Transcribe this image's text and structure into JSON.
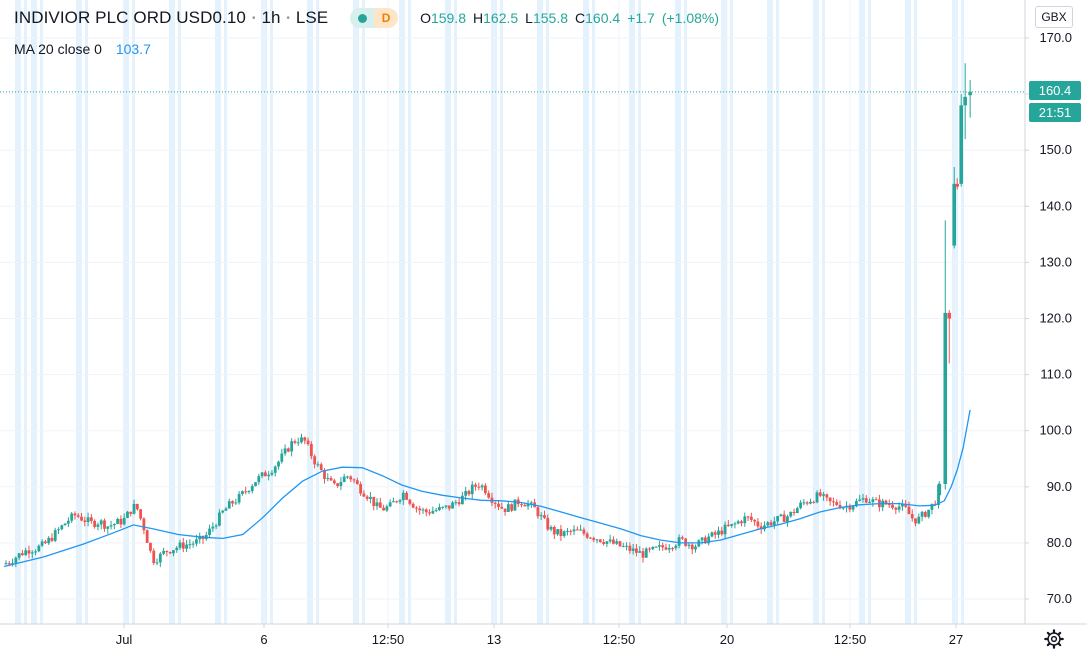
{
  "header": {
    "symbol": "INDIVIOR PLC ORD USD0.10",
    "interval": "1h",
    "exchange": "LSE",
    "badge_letter": "D",
    "ohlc": {
      "open_label": "O",
      "open": "159.8",
      "high_label": "H",
      "high": "162.5",
      "low_label": "L",
      "low": "155.8",
      "close_label": "C",
      "close": "160.4",
      "change": "+1.7",
      "change_pct": "(+1.08%)"
    },
    "indicator": {
      "label": "MA 20 close 0",
      "value": "103.7"
    }
  },
  "price_scale": {
    "currency": "GBX",
    "last_price": "160.4",
    "countdown": "21:51"
  },
  "colors": {
    "up": "#26a69a",
    "down": "#ef5350",
    "ma": "#2196f3",
    "session_band": "#e3f2fd",
    "grid": "#f0f3fa",
    "price_line": "#26a69a"
  },
  "icons": {
    "settings": "gear-icon",
    "live": "market-open-dot",
    "delayed": "delayed-badge"
  },
  "chart_data": {
    "type": "candlestick",
    "title": "INDIVIOR PLC ORD USD0.10",
    "xlabel": "",
    "ylabel": "",
    "ylim": [
      66,
      173
    ],
    "y_ticks": [
      70,
      80,
      90,
      100,
      110,
      120,
      130,
      140,
      150,
      160,
      170
    ],
    "y_tick_labels": [
      "70.0",
      "80.0",
      "90.0",
      "100.0",
      "110.0",
      "120.0",
      "130.0",
      "140.0",
      "150.0",
      "160.0",
      "170.0"
    ],
    "x_tick_labels": [
      "Jul",
      "6",
      "12:50",
      "13",
      "12:50",
      "20",
      "12:50",
      "27"
    ],
    "grid": true,
    "close_points": [
      [
        0,
        76.2
      ],
      [
        8,
        77.0
      ],
      [
        16,
        78.0
      ],
      [
        24,
        78.8
      ],
      [
        32,
        79.0
      ],
      [
        40,
        79.6
      ],
      [
        48,
        81.0
      ],
      [
        56,
        82.5
      ],
      [
        64,
        84.0
      ],
      [
        72,
        85.0
      ],
      [
        80,
        84.2
      ],
      [
        88,
        83.5
      ],
      [
        96,
        83.8
      ],
      [
        104,
        83.0
      ],
      [
        112,
        83.5
      ],
      [
        120,
        84.0
      ],
      [
        126,
        85.5
      ],
      [
        130,
        86.5
      ],
      [
        134,
        86.0
      ],
      [
        138,
        84.0
      ],
      [
        142,
        82.0
      ],
      [
        146,
        79.0
      ],
      [
        150,
        77.0
      ],
      [
        156,
        77.5
      ],
      [
        162,
        78.5
      ],
      [
        170,
        79.0
      ],
      [
        178,
        79.5
      ],
      [
        186,
        79.8
      ],
      [
        194,
        80.2
      ],
      [
        202,
        81.0
      ],
      [
        208,
        82.5
      ],
      [
        214,
        84.0
      ],
      [
        220,
        85.5
      ],
      [
        228,
        87.0
      ],
      [
        236,
        88.0
      ],
      [
        244,
        89.5
      ],
      [
        252,
        91.0
      ],
      [
        260,
        92.0
      ],
      [
        268,
        93.0
      ],
      [
        276,
        94.5
      ],
      [
        284,
        96.5
      ],
      [
        290,
        98.0
      ],
      [
        296,
        98.5
      ],
      [
        302,
        98.2
      ],
      [
        308,
        96.0
      ],
      [
        314,
        94.0
      ],
      [
        320,
        92.5
      ],
      [
        326,
        91.0
      ],
      [
        332,
        90.0
      ],
      [
        338,
        91.0
      ],
      [
        344,
        92.0
      ],
      [
        350,
        91.5
      ],
      [
        356,
        90.0
      ],
      [
        362,
        89.0
      ],
      [
        368,
        88.0
      ],
      [
        374,
        86.5
      ],
      [
        380,
        86.0
      ],
      [
        388,
        86.5
      ],
      [
        396,
        88.0
      ],
      [
        402,
        89.0
      ],
      [
        408,
        87.5
      ],
      [
        416,
        86.0
      ],
      [
        424,
        85.5
      ],
      [
        432,
        85.8
      ],
      [
        440,
        86.0
      ],
      [
        448,
        86.5
      ],
      [
        456,
        87.5
      ],
      [
        464,
        88.5
      ],
      [
        472,
        90.0
      ],
      [
        478,
        90.5
      ],
      [
        484,
        89.5
      ],
      [
        490,
        88.0
      ],
      [
        496,
        87.0
      ],
      [
        502,
        86.0
      ],
      [
        510,
        86.5
      ],
      [
        518,
        87.5
      ],
      [
        526,
        87.0
      ],
      [
        534,
        86.0
      ],
      [
        540,
        84.5
      ],
      [
        546,
        83.0
      ],
      [
        552,
        82.0
      ],
      [
        560,
        81.5
      ],
      [
        570,
        82.0
      ],
      [
        578,
        82.0
      ],
      [
        586,
        81.5
      ],
      [
        594,
        81.0
      ],
      [
        602,
        80.5
      ],
      [
        610,
        80.0
      ],
      [
        618,
        79.5
      ],
      [
        626,
        79.0
      ],
      [
        634,
        78.5
      ],
      [
        642,
        78.0
      ],
      [
        650,
        78.5
      ],
      [
        658,
        79.0
      ],
      [
        666,
        79.5
      ],
      [
        674,
        80.0
      ],
      [
        680,
        80.5
      ],
      [
        686,
        80.0
      ],
      [
        694,
        79.5
      ],
      [
        700,
        80.0
      ],
      [
        708,
        81.0
      ],
      [
        716,
        81.5
      ],
      [
        724,
        82.5
      ],
      [
        732,
        83.0
      ],
      [
        740,
        84.0
      ],
      [
        746,
        84.5
      ],
      [
        752,
        84.0
      ],
      [
        760,
        83.0
      ],
      [
        768,
        83.5
      ],
      [
        776,
        84.0
      ],
      [
        784,
        84.5
      ],
      [
        790,
        85.0
      ],
      [
        796,
        86.0
      ],
      [
        802,
        87.0
      ],
      [
        808,
        87.5
      ],
      [
        814,
        88.0
      ],
      [
        820,
        88.5
      ],
      [
        826,
        87.5
      ],
      [
        832,
        87.0
      ],
      [
        838,
        87.0
      ],
      [
        844,
        86.5
      ],
      [
        852,
        86.8
      ],
      [
        860,
        87.5
      ],
      [
        866,
        88.0
      ],
      [
        872,
        87.5
      ],
      [
        878,
        87.0
      ],
      [
        886,
        87.0
      ],
      [
        894,
        86.8
      ],
      [
        900,
        86.5
      ],
      [
        906,
        86.0
      ],
      [
        912,
        84.5
      ],
      [
        918,
        84.0
      ],
      [
        924,
        85.0
      ],
      [
        930,
        86.0
      ],
      [
        936,
        87.5
      ],
      [
        940,
        90.0
      ],
      [
        944,
        93.0
      ],
      [
        946,
        121.0
      ],
      [
        950,
        120.0
      ],
      [
        955,
        133.0
      ],
      [
        958,
        144.0
      ],
      [
        962,
        158.0
      ],
      [
        966,
        159.0
      ],
      [
        971,
        160.4
      ]
    ],
    "ma_points": [
      [
        0,
        75.8
      ],
      [
        40,
        77.5
      ],
      [
        80,
        79.8
      ],
      [
        110,
        81.8
      ],
      [
        130,
        83.2
      ],
      [
        150,
        82.5
      ],
      [
        175,
        81.5
      ],
      [
        200,
        81.0
      ],
      [
        220,
        80.8
      ],
      [
        240,
        81.5
      ],
      [
        260,
        84.5
      ],
      [
        280,
        88.0
      ],
      [
        300,
        91.0
      ],
      [
        320,
        92.8
      ],
      [
        340,
        93.5
      ],
      [
        360,
        93.4
      ],
      [
        380,
        92.0
      ],
      [
        400,
        90.3
      ],
      [
        420,
        89.2
      ],
      [
        440,
        88.5
      ],
      [
        460,
        88.0
      ],
      [
        480,
        87.6
      ],
      [
        500,
        87.5
      ],
      [
        520,
        87.2
      ],
      [
        540,
        86.5
      ],
      [
        560,
        85.5
      ],
      [
        580,
        84.5
      ],
      [
        600,
        83.5
      ],
      [
        620,
        82.5
      ],
      [
        640,
        81.3
      ],
      [
        660,
        80.5
      ],
      [
        680,
        80.0
      ],
      [
        700,
        80.0
      ],
      [
        720,
        80.5
      ],
      [
        740,
        81.5
      ],
      [
        760,
        82.5
      ],
      [
        780,
        83.3
      ],
      [
        800,
        84.3
      ],
      [
        820,
        85.5
      ],
      [
        840,
        86.3
      ],
      [
        860,
        86.8
      ],
      [
        880,
        87.0
      ],
      [
        900,
        87.0
      ],
      [
        920,
        86.6
      ],
      [
        935,
        86.7
      ],
      [
        945,
        87.5
      ],
      [
        952,
        90.0
      ],
      [
        958,
        93.0
      ],
      [
        964,
        97.0
      ],
      [
        971,
        103.7
      ]
    ]
  }
}
